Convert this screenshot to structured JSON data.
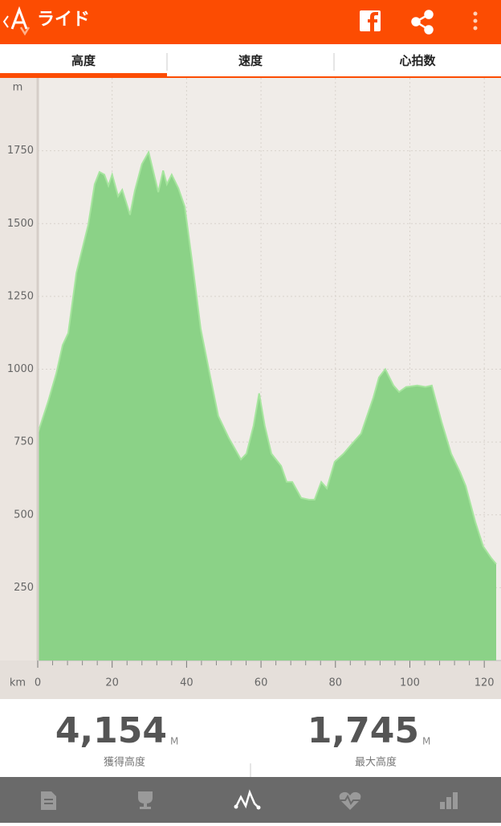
{
  "header": {
    "title": "ライド"
  },
  "tabs": [
    "高度",
    "速度",
    "心拍数"
  ],
  "chart_data": {
    "type": "area",
    "y_unit": "m",
    "x_unit": "km",
    "x": [
      0,
      2.8,
      5,
      6.7,
      8.2,
      10.4,
      13.6,
      15.3,
      16.6,
      17.9,
      19,
      20,
      21.6,
      22.7,
      24.8,
      26.1,
      28,
      29.8,
      32.4,
      33.7,
      34.7,
      36,
      37.8,
      39.5,
      41.6,
      43.8,
      46.4,
      48.5,
      51.3,
      54.6,
      56.1,
      58,
      59.5,
      61,
      62.8,
      65.4,
      66.9,
      68.4,
      70.8,
      72.9,
      74.4,
      76.2,
      77.7,
      79.8,
      82.2,
      84.4,
      86.9,
      90.2,
      91.7,
      93.4,
      95.6,
      97.1,
      99,
      102,
      104.2,
      105.9,
      108.5,
      111.1,
      113.5,
      115,
      117.6,
      119.7,
      121.9,
      123.2
    ],
    "values": [
      779,
      889,
      986,
      1083,
      1124,
      1331,
      1497,
      1635,
      1677,
      1668,
      1630,
      1668,
      1594,
      1616,
      1530,
      1613,
      1704,
      1745,
      1608,
      1682,
      1635,
      1668,
      1621,
      1558,
      1359,
      1138,
      972,
      840,
      765,
      690,
      710,
      806,
      917,
      806,
      710,
      668,
      613,
      613,
      558,
      552,
      552,
      613,
      591,
      682,
      710,
      743,
      779,
      903,
      972,
      1000,
      944,
      922,
      939,
      944,
      939,
      944,
      820,
      710,
      646,
      599,
      475,
      392,
      351,
      331
    ],
    "color": "#8bd287",
    "line_color": "#a6e59e",
    "xlim": [
      0,
      123.2
    ],
    "ylim": [
      0,
      2000
    ],
    "xticks": [
      0,
      20,
      40,
      60,
      80,
      100,
      120
    ],
    "xminorticks": [
      4,
      8,
      12,
      16,
      24,
      28,
      32,
      36,
      44,
      48,
      52,
      56,
      64,
      68,
      72,
      76,
      84,
      88,
      92,
      96,
      104,
      108,
      112,
      116
    ],
    "yticks": [
      250,
      500,
      750,
      1000,
      1250,
      1500,
      1750
    ],
    "grid": true
  },
  "stats": [
    {
      "value": "4,154",
      "unit": "M",
      "label": "獲得高度"
    },
    {
      "value": "1,745",
      "unit": "M",
      "label": "最大高度"
    }
  ]
}
